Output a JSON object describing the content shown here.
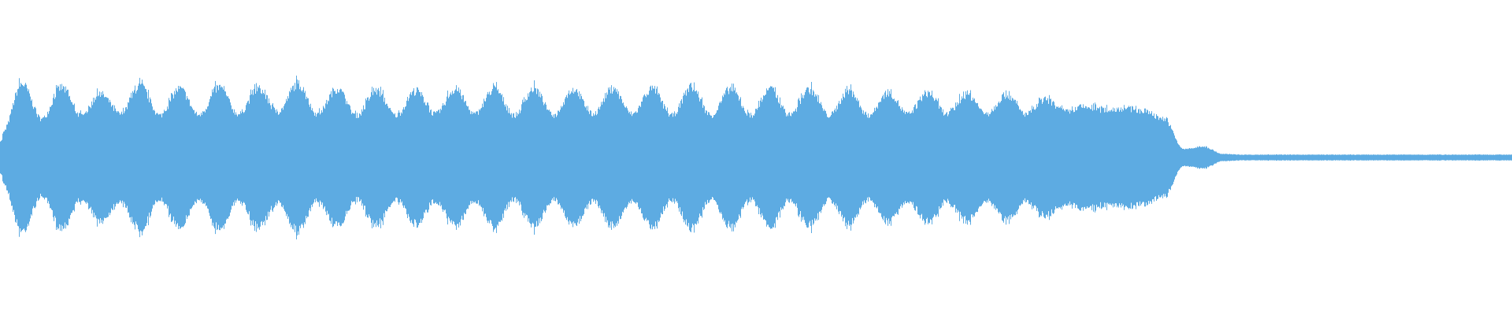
{
  "waveform": {
    "color": "#5dabe2",
    "background": "#ffffff",
    "amplitude_envelope": [
      0.35,
      1.05,
      0.55,
      1.0,
      0.6,
      0.9,
      0.62,
      1.02,
      0.6,
      0.98,
      0.6,
      1.0,
      0.62,
      0.98,
      0.65,
      1.05,
      0.62,
      0.98,
      0.6,
      0.95,
      0.6,
      0.95,
      0.62,
      0.97,
      0.62,
      0.98,
      0.6,
      0.98,
      0.6,
      0.97,
      0.62,
      0.98,
      0.62,
      0.98,
      0.6,
      1.0,
      0.6,
      0.98,
      0.6,
      0.97,
      0.6,
      0.97,
      0.6,
      0.95,
      0.6,
      0.93,
      0.62,
      0.92,
      0.62,
      0.9,
      0.62,
      0.9,
      0.62,
      0.82,
      0.65,
      0.72,
      0.68,
      0.7,
      0.66,
      0.55,
      0.12,
      0.15,
      0.05,
      0.04,
      0.04,
      0.04,
      0.04,
      0.04,
      0.04,
      0.04,
      0.04,
      0.04,
      0.04,
      0.04,
      0.04,
      0.04,
      0.04
    ]
  }
}
